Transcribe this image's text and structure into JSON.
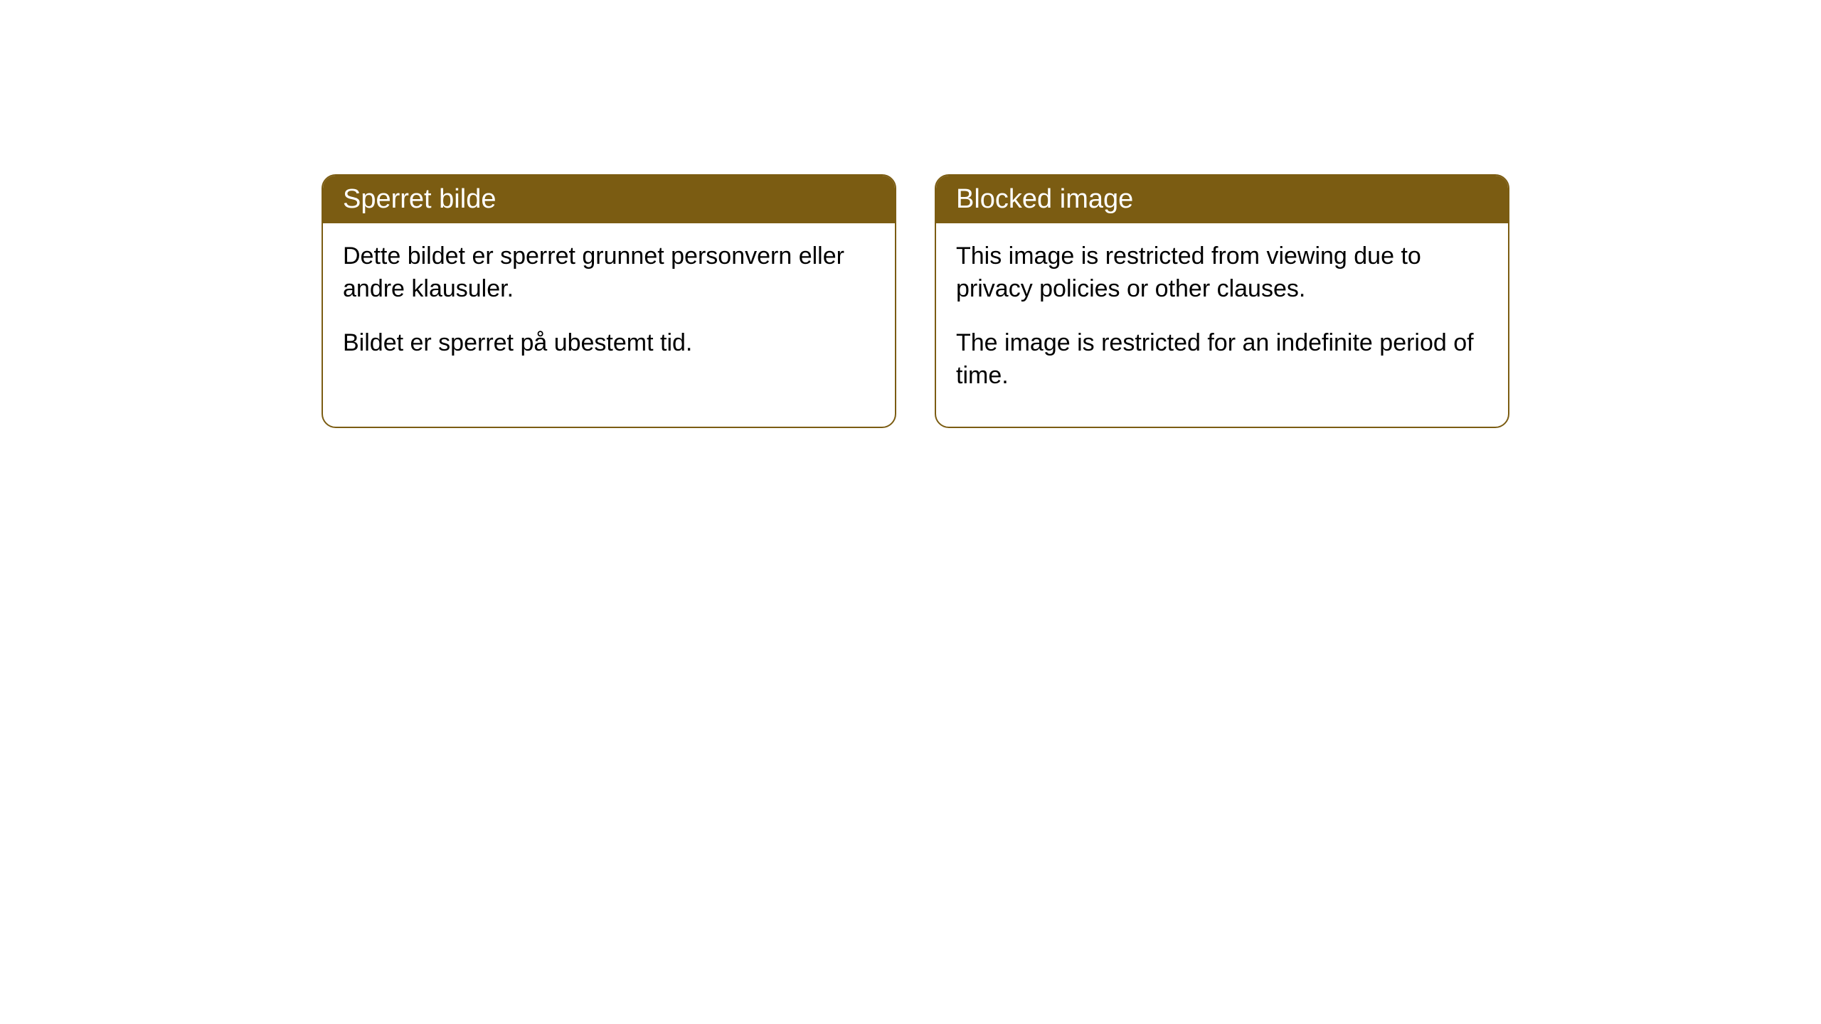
{
  "cards": [
    {
      "title": "Sperret bilde",
      "paragraph1": "Dette bildet er sperret grunnet personvern eller andre klausuler.",
      "paragraph2": "Bildet er sperret på ubestemt tid."
    },
    {
      "title": "Blocked image",
      "paragraph1": "This image is restricted from viewing due to privacy policies or other clauses.",
      "paragraph2": "The image is restricted for an indefinite period of time."
    }
  ],
  "styling": {
    "header_background_color": "#7b5c12",
    "header_text_color": "#ffffff",
    "border_color": "#7b5c12",
    "body_background_color": "#ffffff",
    "body_text_color": "#000000",
    "border_radius": "20px",
    "header_fontsize": 38,
    "body_fontsize": 34
  }
}
